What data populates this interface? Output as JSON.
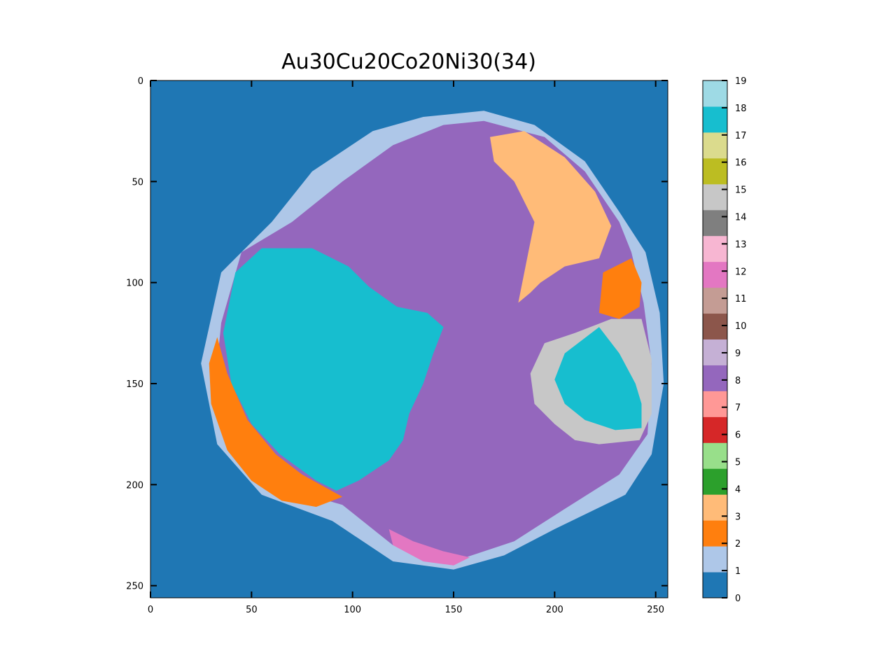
{
  "chart_data": {
    "type": "heatmap",
    "title": "Au30Cu20Co20Ni30(34)",
    "xlabel": "",
    "ylabel": "",
    "grid": false,
    "image_size": [
      256,
      256
    ],
    "xlim": [
      0,
      256
    ],
    "ylim": [
      256,
      0
    ],
    "x_ticks": [
      0,
      50,
      100,
      150,
      200,
      250
    ],
    "y_ticks": [
      0,
      50,
      100,
      150,
      200,
      250
    ],
    "colorbar": {
      "range": [
        0,
        19
      ],
      "ticks": [
        0,
        1,
        2,
        3,
        4,
        5,
        6,
        7,
        8,
        9,
        10,
        11,
        12,
        13,
        14,
        15,
        16,
        17,
        18,
        19
      ],
      "colors": [
        "#1f77b4",
        "#aec7e8",
        "#ff7f0e",
        "#ffbb78",
        "#2ca02c",
        "#98df8a",
        "#d62728",
        "#ff9896",
        "#9467bd",
        "#c5b0d5",
        "#8c564b",
        "#c49c94",
        "#e377c2",
        "#f7b6d2",
        "#7f7f7f",
        "#c7c7c7",
        "#bcbd22",
        "#dbdb8d",
        "#17becf",
        "#9edae5"
      ]
    },
    "regions": [
      {
        "label": 0,
        "description_points": []
      },
      {
        "label": 1,
        "points": [
          [
            25,
            140
          ],
          [
            35,
            95
          ],
          [
            60,
            70
          ],
          [
            80,
            45
          ],
          [
            110,
            25
          ],
          [
            135,
            18
          ],
          [
            165,
            15
          ],
          [
            190,
            22
          ],
          [
            215,
            40
          ],
          [
            232,
            65
          ],
          [
            245,
            85
          ],
          [
            252,
            115
          ],
          [
            254,
            150
          ],
          [
            248,
            185
          ],
          [
            235,
            205
          ],
          [
            200,
            222
          ],
          [
            175,
            235
          ],
          [
            150,
            242
          ],
          [
            120,
            238
          ],
          [
            90,
            218
          ],
          [
            55,
            205
          ],
          [
            33,
            180
          ]
        ]
      },
      {
        "label": 8,
        "points": [
          [
            35,
            120
          ],
          [
            45,
            85
          ],
          [
            70,
            70
          ],
          [
            95,
            50
          ],
          [
            120,
            32
          ],
          [
            145,
            22
          ],
          [
            165,
            20
          ],
          [
            195,
            28
          ],
          [
            215,
            45
          ],
          [
            232,
            70
          ],
          [
            238,
            85
          ],
          [
            244,
            110
          ],
          [
            248,
            140
          ],
          [
            246,
            175
          ],
          [
            232,
            195
          ],
          [
            205,
            212
          ],
          [
            180,
            228
          ],
          [
            150,
            238
          ],
          [
            120,
            230
          ],
          [
            95,
            210
          ],
          [
            60,
            200
          ],
          [
            40,
            185
          ],
          [
            32,
            150
          ]
        ]
      },
      {
        "label": 18,
        "points": [
          [
            36,
            125
          ],
          [
            42,
            95
          ],
          [
            55,
            83
          ],
          [
            80,
            83
          ],
          [
            98,
            92
          ],
          [
            108,
            102
          ],
          [
            122,
            112
          ],
          [
            137,
            115
          ],
          [
            145,
            122
          ],
          [
            140,
            135
          ],
          [
            135,
            150
          ],
          [
            128,
            165
          ],
          [
            125,
            178
          ],
          [
            118,
            188
          ],
          [
            103,
            198
          ],
          [
            92,
            203
          ],
          [
            82,
            198
          ],
          [
            64,
            185
          ],
          [
            50,
            170
          ],
          [
            40,
            150
          ]
        ]
      },
      {
        "label": 2,
        "points": [
          [
            33,
            127
          ],
          [
            38,
            145
          ],
          [
            48,
            168
          ],
          [
            62,
            185
          ],
          [
            75,
            195
          ],
          [
            95,
            206
          ],
          [
            82,
            211
          ],
          [
            65,
            208
          ],
          [
            50,
            198
          ],
          [
            38,
            183
          ],
          [
            30,
            160
          ],
          [
            29,
            140
          ]
        ]
      },
      {
        "label": 2,
        "points": [
          [
            224,
            95
          ],
          [
            238,
            88
          ],
          [
            243,
            100
          ],
          [
            242,
            112
          ],
          [
            232,
            118
          ],
          [
            222,
            115
          ]
        ]
      },
      {
        "label": 3,
        "points": [
          [
            168,
            28
          ],
          [
            185,
            25
          ],
          [
            205,
            38
          ],
          [
            220,
            55
          ],
          [
            228,
            72
          ],
          [
            222,
            88
          ],
          [
            205,
            92
          ],
          [
            193,
            100
          ],
          [
            188,
            105
          ],
          [
            182,
            110
          ],
          [
            186,
            90
          ],
          [
            190,
            70
          ],
          [
            180,
            50
          ],
          [
            170,
            40
          ]
        ]
      },
      {
        "label": 15,
        "points": [
          [
            210,
            125
          ],
          [
            228,
            118
          ],
          [
            243,
            118
          ],
          [
            248,
            138
          ],
          [
            248,
            165
          ],
          [
            242,
            178
          ],
          [
            222,
            180
          ],
          [
            210,
            178
          ],
          [
            200,
            170
          ],
          [
            190,
            160
          ],
          [
            188,
            145
          ],
          [
            195,
            130
          ]
        ]
      },
      {
        "label": 18,
        "points": [
          [
            222,
            122
          ],
          [
            232,
            135
          ],
          [
            240,
            150
          ],
          [
            243,
            160
          ],
          [
            243,
            172
          ],
          [
            230,
            173
          ],
          [
            215,
            168
          ],
          [
            205,
            160
          ],
          [
            200,
            148
          ],
          [
            205,
            135
          ]
        ]
      },
      {
        "label": 12,
        "points": [
          [
            118,
            222
          ],
          [
            130,
            228
          ],
          [
            145,
            233
          ],
          [
            158,
            236
          ],
          [
            150,
            240
          ],
          [
            135,
            238
          ],
          [
            120,
            230
          ]
        ]
      }
    ]
  }
}
